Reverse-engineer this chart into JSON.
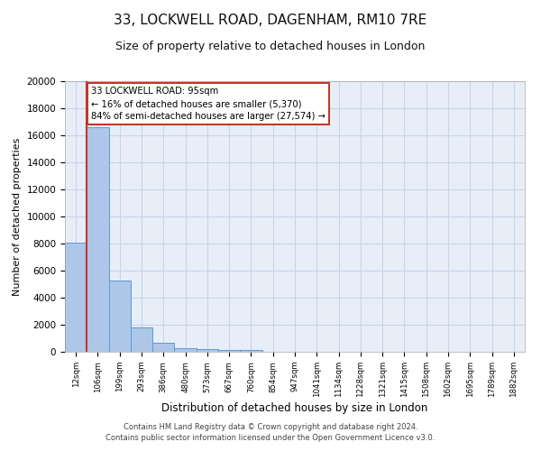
{
  "title": "33, LOCKWELL ROAD, DAGENHAM, RM10 7RE",
  "subtitle": "Size of property relative to detached houses in London",
  "xlabel": "Distribution of detached houses by size in London",
  "ylabel": "Number of detached properties",
  "categories": [
    "12sqm",
    "106sqm",
    "199sqm",
    "293sqm",
    "386sqm",
    "480sqm",
    "573sqm",
    "667sqm",
    "760sqm",
    "854sqm",
    "947sqm",
    "1041sqm",
    "1134sqm",
    "1228sqm",
    "1321sqm",
    "1415sqm",
    "1508sqm",
    "1602sqm",
    "1695sqm",
    "1789sqm",
    "1882sqm"
  ],
  "bar_values": [
    8100,
    16600,
    5300,
    1800,
    650,
    280,
    200,
    150,
    110,
    0,
    0,
    0,
    0,
    0,
    0,
    0,
    0,
    0,
    0,
    0,
    0
  ],
  "bar_color": "#aec6e8",
  "bar_edge_color": "#5b9bd5",
  "vline_color": "#c0392b",
  "annotation_text": "33 LOCKWELL ROAD: 95sqm\n← 16% of detached houses are smaller (5,370)\n84% of semi-detached houses are larger (27,574) →",
  "annotation_box_color": "#ffffff",
  "annotation_box_edge": "#c0392b",
  "ylim": [
    0,
    20000
  ],
  "yticks": [
    0,
    2000,
    4000,
    6000,
    8000,
    10000,
    12000,
    14000,
    16000,
    18000,
    20000
  ],
  "footnote": "Contains HM Land Registry data © Crown copyright and database right 2024.\nContains public sector information licensed under the Open Government Licence v3.0.",
  "title_fontsize": 11,
  "subtitle_fontsize": 9,
  "grid_color": "#c8d4e8",
  "background_color": "#e8eef8"
}
